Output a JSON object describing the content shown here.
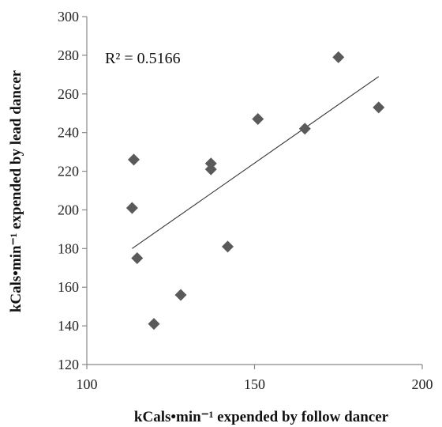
{
  "chart_data": {
    "type": "scatter",
    "xlabel": "kCals•min⁻¹ expended by follow dancer",
    "ylabel": "kCals•min⁻¹ expended by lead dancer",
    "xlim": [
      100,
      200
    ],
    "ylim": [
      120,
      300
    ],
    "x_ticks": [
      100,
      150,
      200
    ],
    "y_ticks": [
      120,
      140,
      160,
      180,
      200,
      220,
      240,
      260,
      280,
      300
    ],
    "grid": false,
    "legend": "none",
    "annotation": "R² = 0.5166",
    "points": [
      {
        "x": 114,
        "y": 226
      },
      {
        "x": 113.5,
        "y": 201
      },
      {
        "x": 115,
        "y": 175
      },
      {
        "x": 120,
        "y": 141
      },
      {
        "x": 128,
        "y": 156
      },
      {
        "x": 137,
        "y": 224
      },
      {
        "x": 137,
        "y": 221
      },
      {
        "x": 142,
        "y": 181
      },
      {
        "x": 151,
        "y": 247
      },
      {
        "x": 165,
        "y": 242
      },
      {
        "x": 175,
        "y": 279
      },
      {
        "x": 187,
        "y": 253
      }
    ],
    "trendline": {
      "x": [
        113.5,
        187
      ],
      "y": [
        180,
        269
      ]
    },
    "marker_color": "#5a5a5a",
    "line_color": "#333333"
  }
}
